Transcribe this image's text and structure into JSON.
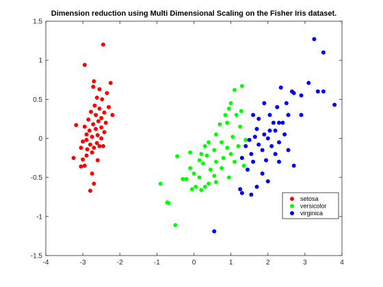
{
  "chart_data": {
    "type": "scatter",
    "title": "Dimension reduction using Multi Dimensional Scaling on the Fisher Iris dataset.",
    "xlabel": "",
    "ylabel": "",
    "xlim": [
      -4,
      4
    ],
    "ylim": [
      -1.5,
      1.5
    ],
    "xticks": [
      -4,
      -3,
      -2,
      -1,
      0,
      1,
      2,
      3,
      4
    ],
    "yticks": [
      -1.5,
      -1,
      -0.5,
      0,
      0.5,
      1,
      1.5
    ],
    "grid": false,
    "legend_position": "bottom-right",
    "series": [
      {
        "name": "setosa",
        "color": "#ff0000",
        "points": [
          [
            -2.45,
            1.2
          ],
          [
            -2.95,
            0.94
          ],
          [
            -2.7,
            0.73
          ],
          [
            -2.25,
            0.71
          ],
          [
            -2.72,
            0.66
          ],
          [
            -2.55,
            0.63
          ],
          [
            -2.35,
            0.58
          ],
          [
            -2.62,
            0.52
          ],
          [
            -2.48,
            0.5
          ],
          [
            -2.3,
            0.4
          ],
          [
            -2.68,
            0.42
          ],
          [
            -2.55,
            0.38
          ],
          [
            -2.78,
            0.34
          ],
          [
            -2.42,
            0.33
          ],
          [
            -2.65,
            0.3
          ],
          [
            -2.2,
            0.3
          ],
          [
            -2.5,
            0.26
          ],
          [
            -2.85,
            0.24
          ],
          [
            -2.58,
            0.22
          ],
          [
            -2.38,
            0.2
          ],
          [
            -2.72,
            0.18
          ],
          [
            -3.18,
            0.17
          ],
          [
            -2.95,
            0.15
          ],
          [
            -2.5,
            0.14
          ],
          [
            -2.65,
            0.12
          ],
          [
            -2.82,
            0.1
          ],
          [
            -2.42,
            0.08
          ],
          [
            -2.9,
            0.05
          ],
          [
            -2.6,
            0.04
          ],
          [
            -2.75,
            0.02
          ],
          [
            -2.5,
            0.0
          ],
          [
            -2.9,
            -0.02
          ],
          [
            -3.0,
            -0.04
          ],
          [
            -2.62,
            -0.06
          ],
          [
            -2.8,
            -0.08
          ],
          [
            -2.45,
            -0.1
          ],
          [
            -3.05,
            -0.12
          ],
          [
            -2.7,
            -0.12
          ],
          [
            -2.55,
            -0.1
          ],
          [
            -2.88,
            -0.14
          ],
          [
            -3.25,
            -0.25
          ],
          [
            -2.75,
            -0.18
          ],
          [
            -2.9,
            -0.22
          ],
          [
            -3.0,
            -0.27
          ],
          [
            -2.6,
            -0.28
          ],
          [
            -2.95,
            -0.35
          ],
          [
            -3.05,
            -0.36
          ],
          [
            -2.75,
            -0.45
          ],
          [
            -2.7,
            -0.58
          ],
          [
            -2.8,
            -0.67
          ]
        ]
      },
      {
        "name": "versicolor",
        "color": "#00ff00",
        "points": [
          [
            1.3,
            0.67
          ],
          [
            1.1,
            0.62
          ],
          [
            1.0,
            0.45
          ],
          [
            0.95,
            0.38
          ],
          [
            1.28,
            0.35
          ],
          [
            0.85,
            0.3
          ],
          [
            1.15,
            0.3
          ],
          [
            0.9,
            0.2
          ],
          [
            0.7,
            0.18
          ],
          [
            1.25,
            0.15
          ],
          [
            0.6,
            0.05
          ],
          [
            1.05,
            0.02
          ],
          [
            1.4,
            -0.02
          ],
          [
            0.4,
            -0.05
          ],
          [
            0.75,
            -0.05
          ],
          [
            1.2,
            -0.1
          ],
          [
            0.3,
            -0.1
          ],
          [
            0.9,
            -0.12
          ],
          [
            -0.1,
            -0.18
          ],
          [
            0.55,
            -0.15
          ],
          [
            0.2,
            -0.2
          ],
          [
            1.0,
            -0.2
          ],
          [
            -0.45,
            -0.23
          ],
          [
            0.35,
            -0.22
          ],
          [
            0.8,
            -0.25
          ],
          [
            1.3,
            -0.25
          ],
          [
            0.15,
            -0.28
          ],
          [
            0.6,
            -0.3
          ],
          [
            1.1,
            -0.3
          ],
          [
            0.25,
            -0.32
          ],
          [
            -0.1,
            -0.38
          ],
          [
            0.45,
            -0.4
          ],
          [
            0.75,
            -0.38
          ],
          [
            1.35,
            -0.35
          ],
          [
            0.0,
            -0.45
          ],
          [
            0.55,
            -0.48
          ],
          [
            0.95,
            -0.5
          ],
          [
            -0.3,
            -0.52
          ],
          [
            0.15,
            -0.5
          ],
          [
            -0.2,
            -0.52
          ],
          [
            0.4,
            -0.58
          ],
          [
            0.6,
            -0.56
          ],
          [
            0.3,
            -0.62
          ],
          [
            0.05,
            -0.62
          ],
          [
            -0.05,
            -0.65
          ],
          [
            0.2,
            -0.66
          ],
          [
            -0.9,
            -0.58
          ],
          [
            -0.72,
            -0.82
          ],
          [
            -0.68,
            -0.83
          ],
          [
            -0.5,
            -1.11
          ]
        ]
      },
      {
        "name": "virginica",
        "color": "#0000ff",
        "points": [
          [
            3.25,
            1.27
          ],
          [
            3.5,
            1.1
          ],
          [
            3.1,
            0.71
          ],
          [
            2.35,
            0.65
          ],
          [
            2.65,
            0.6
          ],
          [
            3.35,
            0.6
          ],
          [
            3.5,
            0.6
          ],
          [
            2.7,
            0.58
          ],
          [
            2.9,
            0.55
          ],
          [
            2.5,
            0.45
          ],
          [
            2.25,
            0.4
          ],
          [
            1.9,
            0.45
          ],
          [
            2.05,
            0.3
          ],
          [
            2.55,
            0.3
          ],
          [
            3.8,
            0.43
          ],
          [
            1.6,
            0.3
          ],
          [
            2.9,
            0.3
          ],
          [
            1.75,
            0.25
          ],
          [
            2.15,
            0.2
          ],
          [
            2.4,
            0.2
          ],
          [
            2.3,
            0.2
          ],
          [
            2.05,
            0.1
          ],
          [
            1.7,
            0.12
          ],
          [
            1.9,
            0.05
          ],
          [
            2.2,
            0.1
          ],
          [
            2.45,
            0.05
          ],
          [
            1.65,
            0.02
          ],
          [
            2.0,
            0.0
          ],
          [
            1.5,
            -0.02
          ],
          [
            2.3,
            -0.05
          ],
          [
            1.75,
            -0.08
          ],
          [
            2.1,
            -0.1
          ],
          [
            1.4,
            -0.1
          ],
          [
            2.55,
            -0.15
          ],
          [
            1.85,
            -0.15
          ],
          [
            1.55,
            -0.2
          ],
          [
            2.2,
            -0.2
          ],
          [
            1.3,
            -0.25
          ],
          [
            1.95,
            -0.28
          ],
          [
            1.6,
            -0.3
          ],
          [
            2.3,
            -0.3
          ],
          [
            2.7,
            -0.35
          ],
          [
            1.45,
            -0.4
          ],
          [
            1.85,
            -0.45
          ],
          [
            2.0,
            -0.55
          ],
          [
            1.7,
            -0.62
          ],
          [
            1.25,
            -0.65
          ],
          [
            1.3,
            -0.7
          ],
          [
            1.55,
            -0.72
          ],
          [
            0.55,
            -1.19
          ]
        ]
      }
    ]
  }
}
